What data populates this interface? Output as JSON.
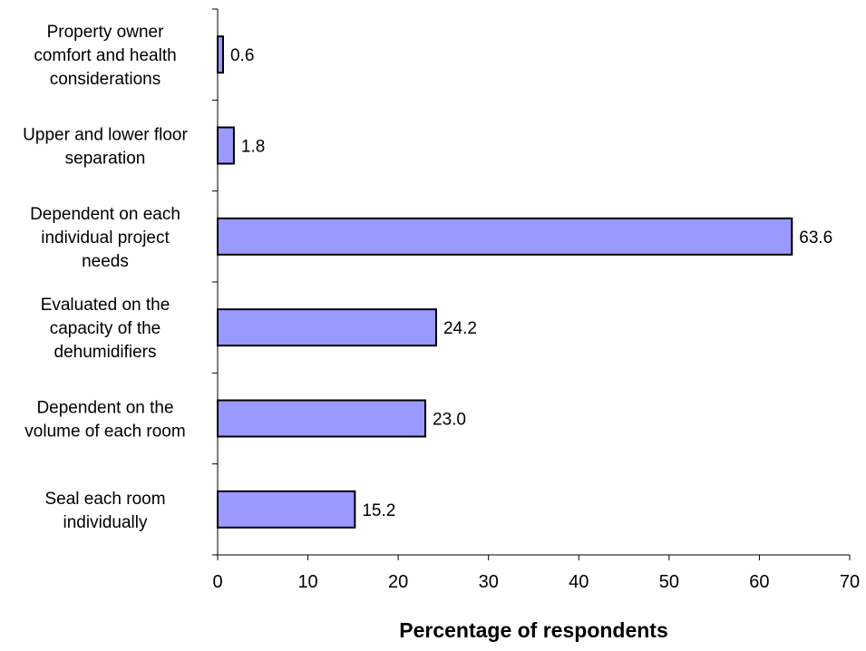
{
  "chart_data": {
    "type": "bar",
    "orientation": "horizontal",
    "categories": [
      "Property owner comfort and health considerations",
      "Upper and lower floor separation",
      "Dependent on each individual project needs",
      "Evaluated on the capacity of the dehumidifiers",
      "Dependent on the volume of each room",
      "Seal each room individually"
    ],
    "category_lines": [
      [
        "Property owner",
        "comfort and health",
        "considerations"
      ],
      [
        "Upper and lower floor",
        "separation"
      ],
      [
        "Dependent on each",
        "individual project",
        "needs"
      ],
      [
        "Evaluated on the",
        "capacity of the",
        "dehumidifiers"
      ],
      [
        "Dependent on the",
        "volume of each room"
      ],
      [
        "Seal each room",
        "individually"
      ]
    ],
    "values": [
      0.6,
      1.8,
      63.6,
      24.2,
      23.0,
      15.2
    ],
    "value_labels": [
      "0.6",
      "1.8",
      "63.6",
      "24.2",
      "23.0",
      "15.2"
    ],
    "title": "",
    "xlabel": "Percentage of respondents",
    "ylabel": "",
    "xlim": [
      0,
      70
    ],
    "xticks": [
      0,
      10,
      20,
      30,
      40,
      50,
      60,
      70
    ],
    "xtick_labels": [
      "0",
      "10",
      "20",
      "30",
      "40",
      "50",
      "60",
      "70"
    ],
    "grid": false,
    "legend": "none",
    "bar_color": "#9999ff",
    "bar_edge_color": "#000000",
    "axis_color": "#000000"
  }
}
